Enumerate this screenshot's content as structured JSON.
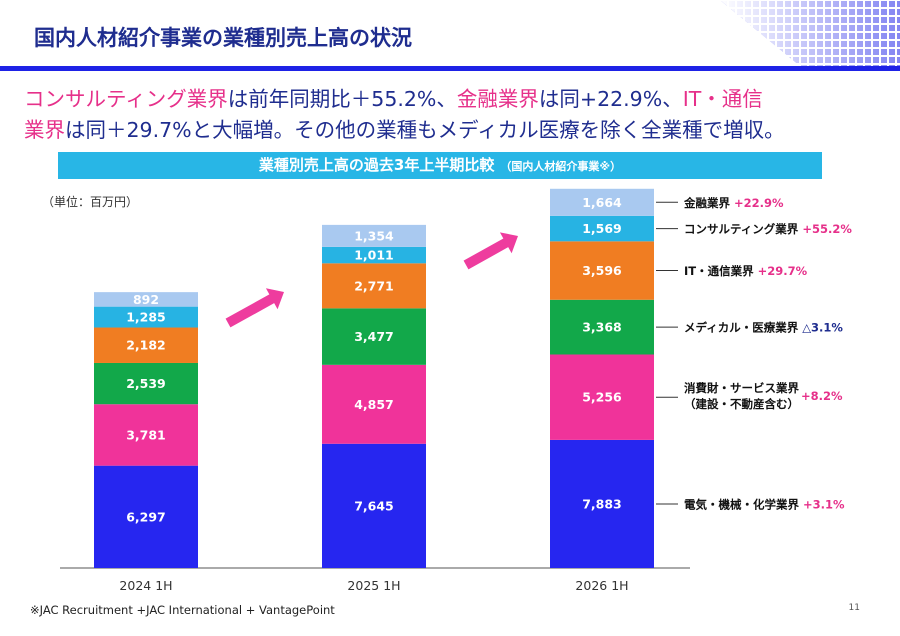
{
  "slide": {
    "title": "国内人材紹介事業の業種別売上高の状況",
    "headline_segments": [
      {
        "text": "コンサルティング業界",
        "color": "pink"
      },
      {
        "text": "は前年同期比＋55.2%、",
        "color": "blue"
      },
      {
        "text": "金融業界",
        "color": "pink"
      },
      {
        "text": "は同+22.9%、",
        "color": "blue"
      },
      {
        "text": "IT・通信",
        "color": "pink"
      }
    ],
    "headline_segments_2": [
      {
        "text": "業界",
        "color": "pink"
      },
      {
        "text": "は同＋29.7%と大幅増。その他の業種もメディカル医療を除く全業種で増収。",
        "color": "blue"
      }
    ],
    "subtitle": "業種別売上高の過去3年上半期比較",
    "subtitle_note": "（国内人材紹介事業※）",
    "unit": "（単位：百万円）",
    "footnote": "※JAC Recruitment +JAC International + VantagePoint",
    "page_number": "11"
  },
  "colors": {
    "title": "#1f2d8f",
    "accent_pink": "#e6308a",
    "rule_blue": "#1e22e6",
    "subtitle_bg": "#28b6e6",
    "arrow": "#ee3c9e",
    "negative": "#1f2d8f"
  },
  "chart_data": {
    "type": "bar",
    "stacked": true,
    "categories": [
      "2024 1H",
      "2025 1H",
      "2026 1H"
    ],
    "series": [
      {
        "name": "電気・機械・化学業界",
        "color": "#2626f0",
        "values": [
          6297,
          7645,
          7883
        ],
        "change": "+3.1%",
        "change_color": "pink"
      },
      {
        "name": "消費財・サービス業界（建設・不動産含む）",
        "name_line1": "消費財・サービス業界",
        "name_line2": "（建設・不動産含む）",
        "color": "#f0339a",
        "values": [
          3781,
          4857,
          5256
        ],
        "change": "+8.2%",
        "change_color": "pink"
      },
      {
        "name": "メディカル・医療業界",
        "color": "#12a84a",
        "values": [
          2539,
          3477,
          3368
        ],
        "change": "△3.1%",
        "change_color": "blue"
      },
      {
        "name": "IT・通信業界",
        "color": "#f07d22",
        "values": [
          2182,
          2771,
          3596
        ],
        "change": "+29.7%",
        "change_color": "pink"
      },
      {
        "name": "コンサルティング業界",
        "color": "#27b3e3",
        "values": [
          1285,
          1011,
          1569
        ],
        "change": "+55.2%",
        "change_color": "pink"
      },
      {
        "name": "金融業界",
        "color": "#a9c9f0",
        "values": [
          892,
          1354,
          1664
        ],
        "change": "+22.9%",
        "change_color": "pink"
      }
    ],
    "value_labels": [
      [
        "6,297",
        "7,645",
        "7,883"
      ],
      [
        "3,781",
        "4,857",
        "5,256"
      ],
      [
        "2,539",
        "3,477",
        "3,368"
      ],
      [
        "2,182",
        "2,771",
        "3,596"
      ],
      [
        "1,285",
        "1,011",
        "1,569"
      ],
      [
        "892",
        "1,354",
        "1,664"
      ]
    ],
    "legend_position": "right",
    "grid": false
  }
}
